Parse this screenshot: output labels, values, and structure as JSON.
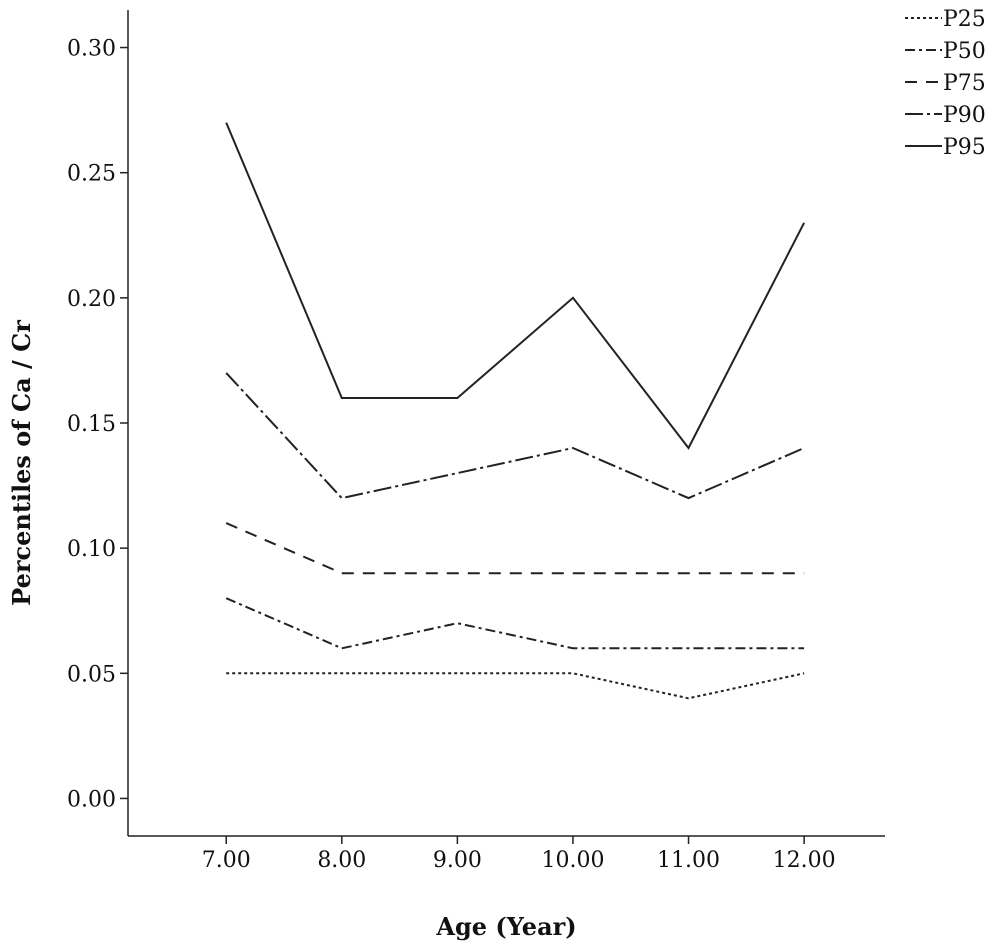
{
  "chart_data": {
    "type": "line",
    "title": "",
    "xlabel": "Age (Year)",
    "ylabel": "Percentiles of Ca / Cr",
    "x": [
      7,
      8,
      9,
      10,
      11,
      12
    ],
    "x_tick_labels": [
      "7.00",
      "8.00",
      "9.00",
      "10.00",
      "11.00",
      "12.00"
    ],
    "xlim": [
      6.15,
      12.7
    ],
    "ylim": [
      -0.015,
      0.315
    ],
    "y_ticks": [
      0.0,
      0.05,
      0.1,
      0.15,
      0.2,
      0.25,
      0.3
    ],
    "y_tick_labels": [
      "0.00",
      "0.05",
      "0.10",
      "0.15",
      "0.20",
      "0.25",
      "0.30"
    ],
    "grid": false,
    "legend_position": "top-right",
    "series": [
      {
        "name": "P25",
        "values": [
          0.05,
          0.05,
          0.05,
          0.05,
          0.04,
          0.05
        ],
        "dash": "3,3"
      },
      {
        "name": "P50",
        "values": [
          0.08,
          0.06,
          0.07,
          0.06,
          0.06,
          0.06
        ],
        "dash": "10,4,3,4"
      },
      {
        "name": "P75",
        "values": [
          0.11,
          0.09,
          0.09,
          0.09,
          0.09,
          0.09
        ],
        "dash": "12,9"
      },
      {
        "name": "P90",
        "values": [
          0.17,
          0.12,
          0.13,
          0.14,
          0.12,
          0.14
        ],
        "dash": "18,4,3,4"
      },
      {
        "name": "P95",
        "values": [
          0.27,
          0.16,
          0.16,
          0.2,
          0.14,
          0.23
        ],
        "dash": ""
      }
    ],
    "line_color": "#222222"
  }
}
